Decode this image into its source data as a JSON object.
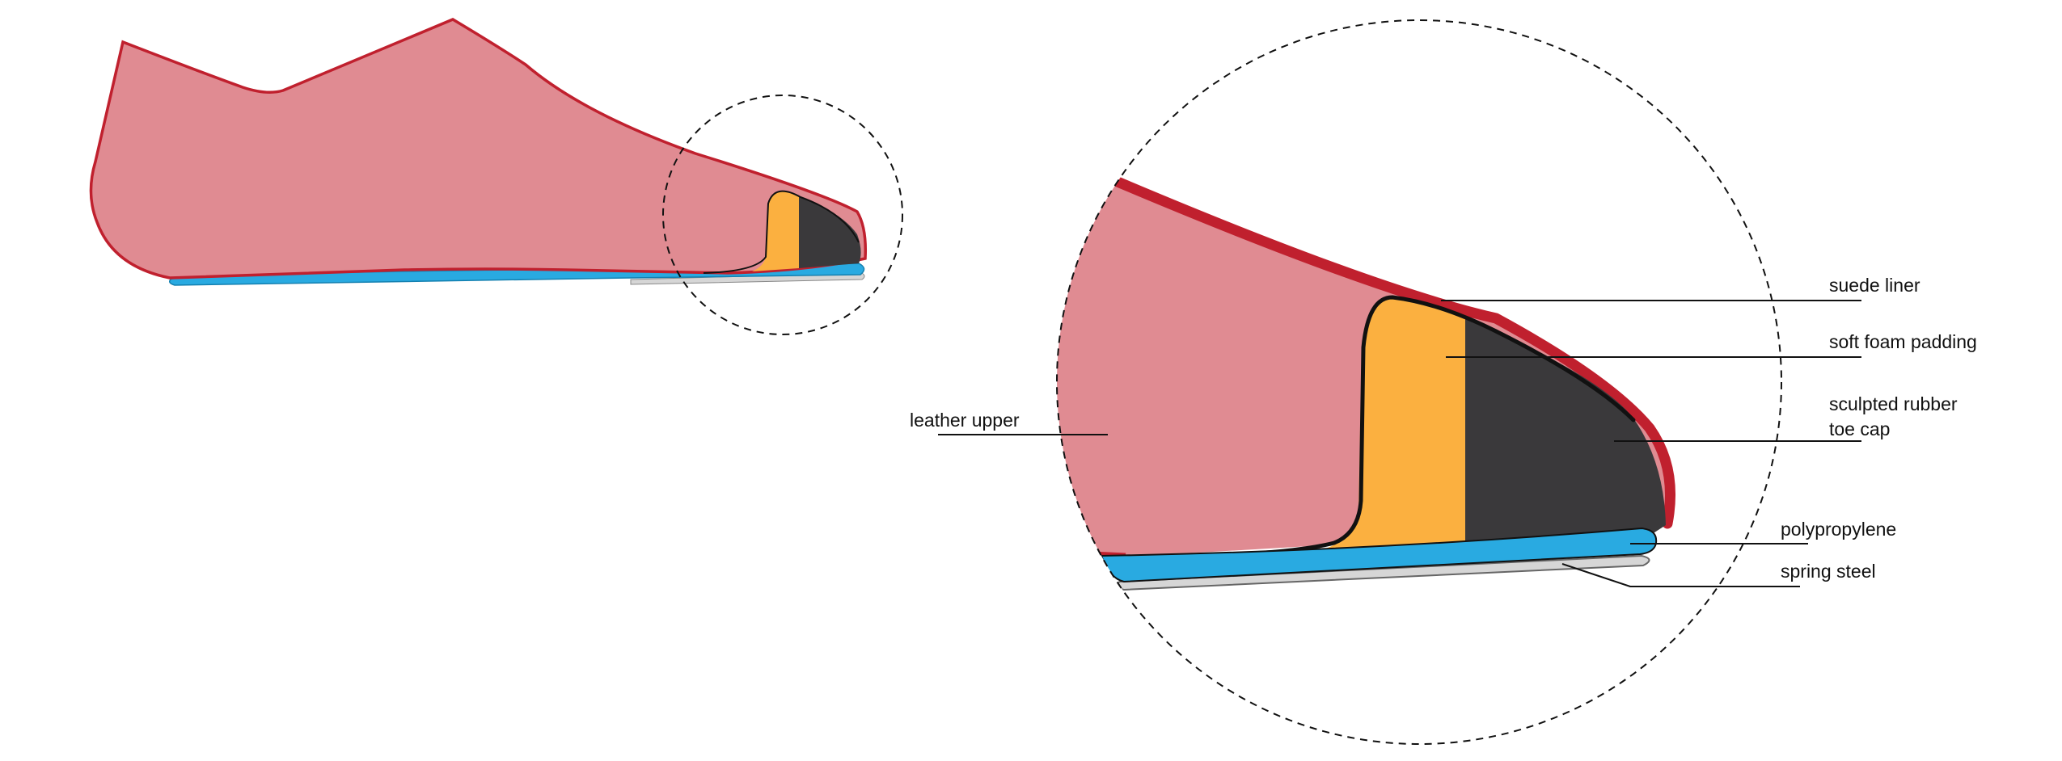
{
  "colors": {
    "leather_upper_fill": "#e08b92",
    "leather_upper_edge": "#c0202e",
    "foam_padding": "#fbb040",
    "rubber_toe_cap": "#3a393b",
    "polypropylene": "#29aae1",
    "spring_steel": "#d6d6d6",
    "outline": "#111111"
  },
  "labels": {
    "suede_liner": "suede liner",
    "soft_foam_padding": "soft foam padding",
    "sculpted_rubber_line1": "sculpted rubber",
    "sculpted_rubber_line2": "toe cap",
    "leather_upper": "leather upper",
    "polypropylene": "polypropylene",
    "spring_steel": "spring steel"
  }
}
